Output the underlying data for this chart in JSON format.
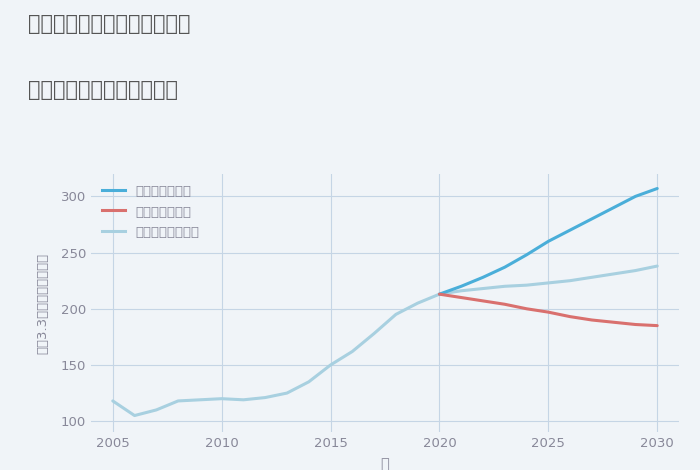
{
  "title_line1": "愛知県名古屋市中村区横井の",
  "title_line2": "中古マンションの価格推移",
  "xlabel": "年",
  "ylabel": "坪（3.3㎡）単価（万円）",
  "background_color": "#f0f4f8",
  "grid_color": "#c5d5e5",
  "legend_good": "グッドシナリオ",
  "legend_bad": "バッドシナリオ",
  "legend_normal": "ノーマルシナリオ",
  "color_good": "#4aaed9",
  "color_bad": "#d9706e",
  "color_normal": "#a8d0e0",
  "title_color": "#555555",
  "tick_color": "#888899",
  "ylim": [
    90,
    320
  ],
  "xlim": [
    2004,
    2031
  ],
  "yticks": [
    100,
    150,
    200,
    250,
    300
  ],
  "xticks": [
    2005,
    2010,
    2015,
    2020,
    2025,
    2030
  ],
  "history_years": [
    2005,
    2006,
    2007,
    2008,
    2009,
    2010,
    2011,
    2012,
    2013,
    2014,
    2015,
    2016,
    2017,
    2018,
    2019,
    2020
  ],
  "history_values": [
    118,
    105,
    110,
    118,
    119,
    120,
    119,
    121,
    125,
    135,
    150,
    162,
    178,
    195,
    205,
    213
  ],
  "good_years": [
    2020,
    2021,
    2022,
    2023,
    2024,
    2025,
    2026,
    2027,
    2028,
    2029,
    2030
  ],
  "good_values": [
    213,
    220,
    228,
    237,
    248,
    260,
    270,
    280,
    290,
    300,
    307
  ],
  "bad_years": [
    2020,
    2021,
    2022,
    2023,
    2024,
    2025,
    2026,
    2027,
    2028,
    2029,
    2030
  ],
  "bad_values": [
    213,
    210,
    207,
    204,
    200,
    197,
    193,
    190,
    188,
    186,
    185
  ],
  "normal_years": [
    2020,
    2021,
    2022,
    2023,
    2024,
    2025,
    2026,
    2027,
    2028,
    2029,
    2030
  ],
  "normal_values": [
    213,
    216,
    218,
    220,
    221,
    223,
    225,
    228,
    231,
    234,
    238
  ]
}
